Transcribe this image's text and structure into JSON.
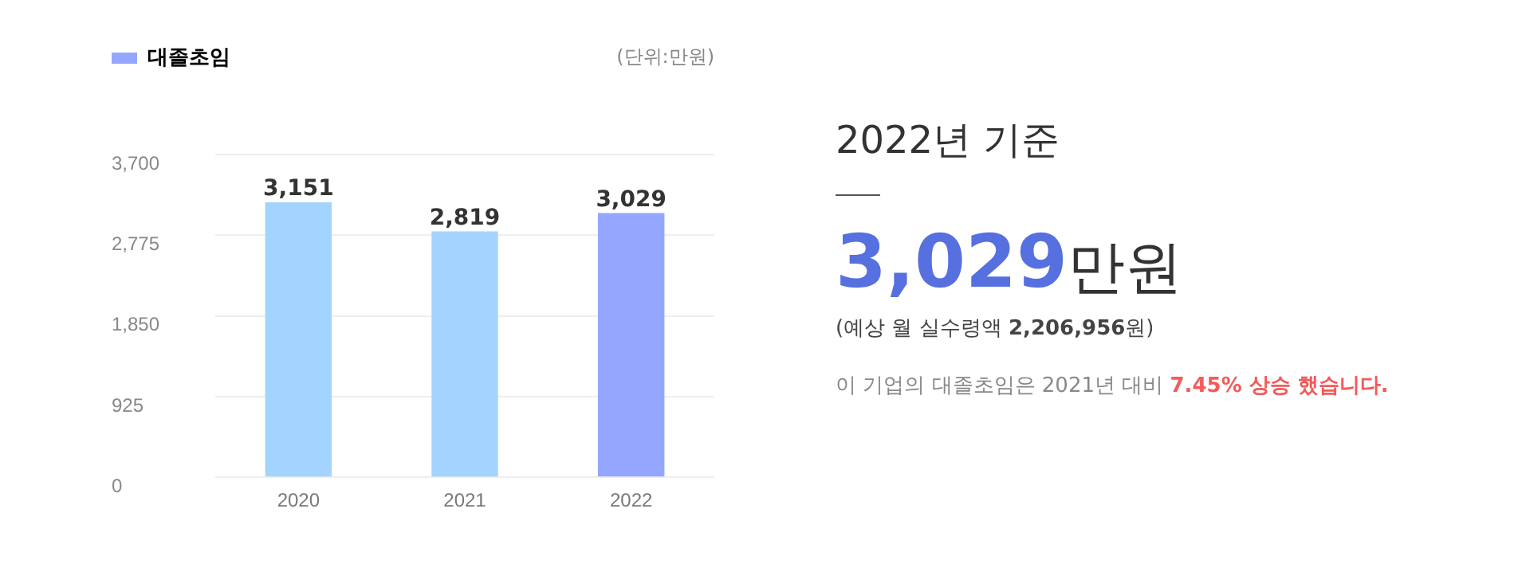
{
  "chart_data": [
    {
      "type": "bar",
      "categories": [
        "2020",
        "2021",
        "2022"
      ],
      "series": [
        {
          "name": "대졸초임",
          "color": "#94a6ff",
          "colors": [
            "#a3d4ff",
            "#a3d4ff",
            "#94a6ff"
          ],
          "values": [
            3151,
            2819,
            3029
          ],
          "value_labels": [
            "3,151",
            "2,819",
            "3,029"
          ]
        }
      ],
      "ylim": [
        0,
        3700
      ],
      "yticks": [
        0,
        {
          "value": 925,
          "label": "925"
        },
        {
          "value": 1850,
          "label": "1,850"
        },
        {
          "value": 2775,
          "label": "2,775"
        },
        {
          "value": 3700,
          "label": "3,700"
        }
      ],
      "grid": "y",
      "legend": "top left",
      "annotations": [
        "(단위:만원)"
      ]
    },
    {
      "type": "other",
      "title": "2022년 기준",
      "annotations": [
        "3,029만원",
        "(예상 월 실수령액 2,206,956원)",
        "이 기업의 대졸초임은 2021년 대비 7.45% 상승 했습니다."
      ]
    }
  ]
}
